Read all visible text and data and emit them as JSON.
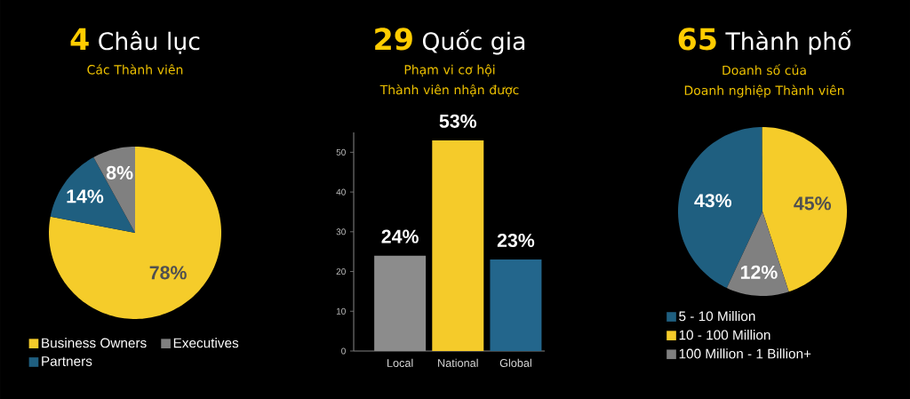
{
  "chart_data": [
    {
      "type": "pie",
      "title": "**4** Châu lục",
      "subtitle": "Các Thành viên",
      "categories": [
        "Business Owners",
        "Partners",
        "Executives"
      ],
      "values": [
        78,
        14,
        8
      ],
      "colors": [
        "#f5cc2a",
        "#1f5f80",
        "#808080"
      ],
      "value_labels": [
        "78%",
        "14%",
        "8%"
      ],
      "legend": "bottom"
    },
    {
      "type": "bar",
      "title": "**29** Quốc gia",
      "subtitle": "Phạm vi cơ hội\nThành viên nhận được",
      "categories": [
        "Local",
        "National",
        "Global"
      ],
      "values": [
        24,
        53,
        23
      ],
      "colors": [
        "#8c8c8c",
        "#f5cb2a",
        "#23668c"
      ],
      "value_labels": [
        "24%",
        "53%",
        "23%"
      ],
      "ylim": [
        0,
        55
      ],
      "yticks": [
        0,
        10,
        20,
        30,
        40,
        50
      ]
    },
    {
      "type": "pie",
      "title": "**65** Thành phố",
      "subtitle": "Doanh số của\nDoanh nghiệp Thành viên",
      "categories": [
        "5 - 10 Million",
        "10 - 100 Million",
        "100 Million - 1 Billion+"
      ],
      "values": [
        43,
        45,
        12
      ],
      "colors": [
        "#1f5f80",
        "#f5cc2a",
        "#808080"
      ],
      "value_labels": [
        "43%",
        "45%",
        "12%"
      ],
      "legend": "bottom left"
    }
  ]
}
